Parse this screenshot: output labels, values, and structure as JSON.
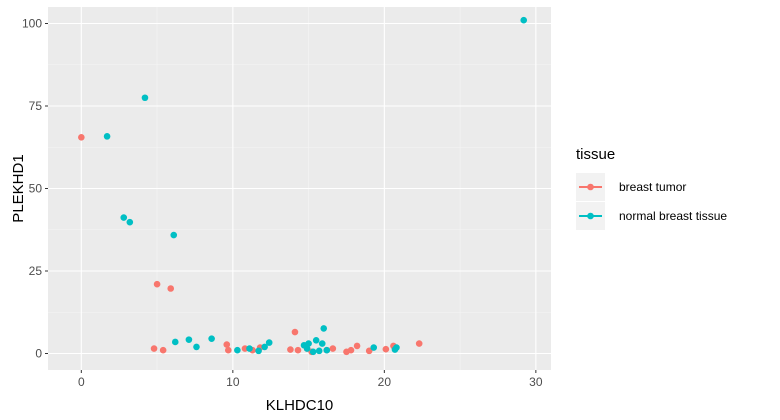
{
  "chart_data": {
    "type": "scatter",
    "title": "",
    "xlabel": "KLHDC10",
    "ylabel": "PLEKHD1",
    "xlim": [
      -2.2,
      31
    ],
    "ylim": [
      -5,
      105
    ],
    "x_ticks": [
      0,
      10,
      20,
      30
    ],
    "y_ticks": [
      0,
      25,
      50,
      75,
      100
    ],
    "x_tick_labels": [
      "0",
      "10",
      "20",
      "30"
    ],
    "y_tick_labels": [
      "0",
      "25",
      "50",
      "75",
      "100"
    ],
    "grid": true,
    "legend": {
      "title": "tissue",
      "placement": "right",
      "items": [
        "breast tumor",
        "normal breast tissue"
      ]
    },
    "series": [
      {
        "name": "breast tumor",
        "color": "#F8766D",
        "points": [
          [
            0.0,
            65.5
          ],
          [
            5.0,
            21.0
          ],
          [
            5.9,
            19.7
          ],
          [
            4.8,
            1.5
          ],
          [
            5.4,
            1.0
          ],
          [
            9.6,
            2.7
          ],
          [
            9.7,
            1.0
          ],
          [
            10.8,
            1.5
          ],
          [
            11.3,
            1.0
          ],
          [
            11.8,
            1.8
          ],
          [
            13.8,
            1.2
          ],
          [
            14.1,
            6.5
          ],
          [
            14.3,
            1.0
          ],
          [
            14.9,
            1.5
          ],
          [
            15.2,
            0.5
          ],
          [
            16.2,
            1.0
          ],
          [
            16.6,
            1.5
          ],
          [
            17.5,
            0.5
          ],
          [
            17.8,
            1.0
          ],
          [
            18.2,
            2.3
          ],
          [
            19.0,
            0.8
          ],
          [
            20.1,
            1.3
          ],
          [
            20.6,
            2.3
          ],
          [
            22.3,
            3.0
          ]
        ]
      },
      {
        "name": "normal breast tissue",
        "color": "#00BFC4",
        "points": [
          [
            29.2,
            101.0
          ],
          [
            4.2,
            77.5
          ],
          [
            1.7,
            65.8
          ],
          [
            2.8,
            41.2
          ],
          [
            3.2,
            39.8
          ],
          [
            6.1,
            35.9
          ],
          [
            6.2,
            3.5
          ],
          [
            7.1,
            4.2
          ],
          [
            7.6,
            2.0
          ],
          [
            8.6,
            4.5
          ],
          [
            10.3,
            1.0
          ],
          [
            11.1,
            1.5
          ],
          [
            11.7,
            0.8
          ],
          [
            12.1,
            2.0
          ],
          [
            12.4,
            3.3
          ],
          [
            14.7,
            2.5
          ],
          [
            14.9,
            1.5
          ],
          [
            15.0,
            3.0
          ],
          [
            15.3,
            0.5
          ],
          [
            15.5,
            4.0
          ],
          [
            15.7,
            0.8
          ],
          [
            15.9,
            3.0
          ],
          [
            16.0,
            7.6
          ],
          [
            16.2,
            1.0
          ],
          [
            19.3,
            1.8
          ],
          [
            20.7,
            1.2
          ],
          [
            20.8,
            1.8
          ]
        ]
      }
    ]
  }
}
